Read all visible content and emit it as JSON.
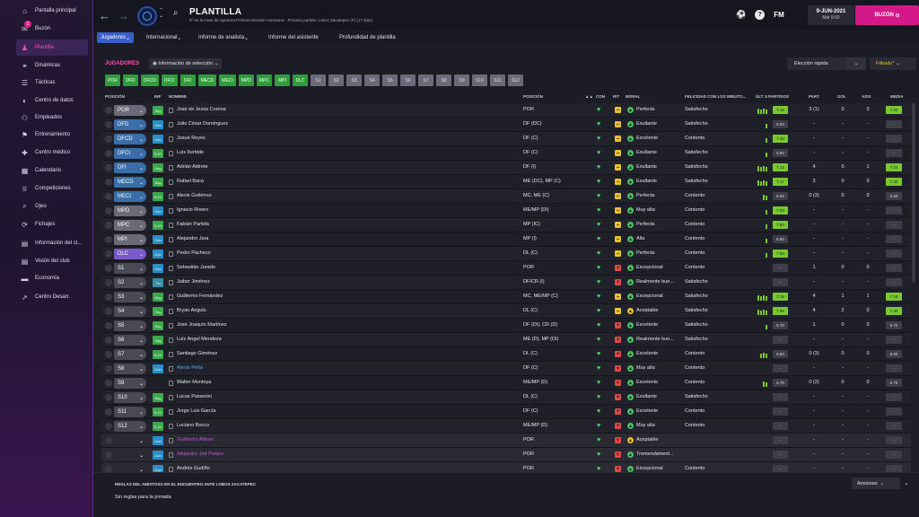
{
  "sidebar": {
    "items": [
      {
        "label": "Pantalla principal",
        "icon": "home-icon",
        "glyph": "⌂"
      },
      {
        "label": "Buzón",
        "icon": "mail-icon",
        "glyph": "✉",
        "badge": "1"
      },
      {
        "label": "Plantilla",
        "icon": "shirt-icon",
        "glyph": "♟",
        "active": true
      },
      {
        "label": "Dinámicas",
        "icon": "dynamics-icon",
        "glyph": "⚭"
      },
      {
        "label": "Tácticas",
        "icon": "tactics-icon",
        "glyph": "☰"
      },
      {
        "label": "Centro de datos",
        "icon": "data-icon",
        "glyph": "◐"
      },
      {
        "label": "Empleados",
        "icon": "staff-icon",
        "glyph": "⚇"
      },
      {
        "label": "Entrenamiento",
        "icon": "training-icon",
        "glyph": "⚑"
      },
      {
        "label": "Centro médico",
        "icon": "medical-icon",
        "glyph": "✚"
      },
      {
        "label": "Calendario",
        "icon": "calendar-icon",
        "glyph": "▦"
      },
      {
        "label": "Competiciones",
        "icon": "trophy-icon",
        "glyph": "♕"
      },
      {
        "label": "Ojeo",
        "icon": "scout-icon",
        "glyph": "⌕"
      },
      {
        "label": "Fichajes",
        "icon": "transfer-icon",
        "glyph": "⟳"
      },
      {
        "label": "Información del cl...",
        "icon": "info-icon",
        "glyph": "▤"
      },
      {
        "label": "Visión del club",
        "icon": "vision-icon",
        "glyph": "▤"
      },
      {
        "label": "Economía",
        "icon": "finance-icon",
        "glyph": "▬"
      },
      {
        "label": "Centro Desarr.",
        "icon": "development-icon",
        "glyph": "➚"
      }
    ]
  },
  "header": {
    "title": "PLANTILLA",
    "subtitle": "5º en la Fase de Apertura Primera División mexicana - Próximo partido: Lobos Zacatepec (F) (17 días)",
    "fm": "FM",
    "date": "9-JUN-2021",
    "date_sub": "Mié 9:00",
    "buzon": "BUZÓN"
  },
  "tabs": [
    {
      "label": "Jugadores",
      "active": true,
      "dd": true
    },
    {
      "label": "Internacional",
      "dd": true
    },
    {
      "label": "Informe de analista",
      "dd": true
    },
    {
      "label": "Informe del asistente"
    },
    {
      "label": "Profundidad de plantilla"
    }
  ],
  "toolbar": {
    "section": "JUGADORES",
    "info_sel": "Información de selección",
    "eleccion": "Elección rápida",
    "filtrado": "Filtrado*"
  },
  "chips": [
    {
      "t": "POR",
      "g": true
    },
    {
      "t": "DFD",
      "g": true
    },
    {
      "t": "DFCD",
      "g": true
    },
    {
      "t": "DFCI",
      "g": true
    },
    {
      "t": "DFI",
      "g": true
    },
    {
      "t": "MECD",
      "g": true
    },
    {
      "t": "MECI",
      "g": true
    },
    {
      "t": "MPD",
      "g": true
    },
    {
      "t": "MPC",
      "g": true
    },
    {
      "t": "MPI",
      "g": true
    },
    {
      "t": "DLC",
      "g": true
    },
    {
      "t": "S1"
    },
    {
      "t": "S2"
    },
    {
      "t": "S3"
    },
    {
      "t": "S4"
    },
    {
      "t": "S5"
    },
    {
      "t": "S6"
    },
    {
      "t": "S7"
    },
    {
      "t": "S8"
    },
    {
      "t": "S9"
    },
    {
      "t": "S10"
    },
    {
      "t": "S11"
    },
    {
      "t": "S12"
    }
  ],
  "columns": {
    "posicion": "POSICIÓN",
    "inf": "INF",
    "nombre": "NOMBRE",
    "pos2": "POSICIÓN",
    "con": "CON",
    "rit": "RIT",
    "moral": "MORAL",
    "felicidad": "FELICIDAD CON LOS MINUTO...",
    "ult": "ÚLT. 5 PARTIDOS",
    "part": "PART",
    "gol": "GOL",
    "asis": "ASIS",
    "media": "MEDIA"
  },
  "rows": [
    {
      "pos": "POR",
      "pc": "#6a6a78",
      "inf": "Sug",
      "ic": "g",
      "name": "José de Jesús Corona",
      "position": "POR",
      "rit": "y",
      "moral": "Perfecta",
      "mc": "g",
      "fel": "Satisfecho",
      "bars": 4,
      "val": "7.16",
      "vc": "#7ac830",
      "part": "3 (1)",
      "gol": "0",
      "asis": "0",
      "media": "7.22",
      "mdc": "#7ac830"
    },
    {
      "pos": "DFD",
      "pc": "#3a6ea8",
      "inf": "Con",
      "ic": "c",
      "name": "Julio César Domínguez",
      "position": "DF (DC)",
      "rit": "y",
      "moral": "Exultante",
      "mc": "g",
      "fel": "Satisfecho",
      "bars": 1,
      "val": "6.50",
      "vc": "#3e3e4a",
      "part": "-",
      "gol": "-",
      "asis": "-",
      "media": "-",
      "mdc": "#3e3e4a"
    },
    {
      "pos": "DFCD",
      "pc": "#3a6ea8",
      "inf": "Con",
      "ic": "c",
      "name": "Josué Reyes",
      "position": "DF (C)",
      "rit": "y",
      "moral": "Excelente",
      "mc": "g",
      "fel": "Contento",
      "bars": 1,
      "val": "7.10",
      "vc": "#7ac830",
      "part": "-",
      "gol": "-",
      "asis": "-",
      "media": "-",
      "mdc": "#3e3e4a"
    },
    {
      "pos": "DFCI",
      "pc": "#3a6ea8",
      "inf": "S-21",
      "ic": "g",
      "name": "Luis Iturbide",
      "position": "DF (C)",
      "rit": "y",
      "moral": "Exultante",
      "mc": "g",
      "fel": "Satisfecho",
      "bars": 1,
      "val": "6.90",
      "vc": "#3e3e4a",
      "part": "-",
      "gol": "-",
      "asis": "-",
      "media": "-",
      "mdc": "#3e3e4a"
    },
    {
      "pos": "DFI",
      "pc": "#3a6ea8",
      "inf": "Sug",
      "ic": "g",
      "name": "Adrián Aldrete",
      "position": "DF (I)",
      "rit": "y",
      "moral": "Exultante",
      "mc": "g",
      "fel": "Satisfecho",
      "bars": 4,
      "val": "7.12",
      "vc": "#7ac830",
      "part": "4",
      "gol": "0",
      "asis": "1",
      "media": "7.20",
      "mdc": "#7ac830"
    },
    {
      "pos": "MECD",
      "pc": "#3a6ea8",
      "inf": "Sug",
      "ic": "g",
      "name": "Rafael Baca",
      "position": "ME (DC), MP (C)",
      "rit": "y",
      "moral": "Exultante",
      "mc": "g",
      "fel": "Satisfecho",
      "bars": 4,
      "val": "7.17",
      "vc": "#7ac830",
      "part": "3",
      "gol": "0",
      "asis": "0",
      "media": "7.30",
      "mdc": "#7ac830"
    },
    {
      "pos": "MECI",
      "pc": "#3a6ea8",
      "inf": "S-21",
      "ic": "g",
      "name": "Alexis Gutiérrez",
      "position": "MC, ME (C)",
      "rit": "y",
      "moral": "Perfecta",
      "mc": "g",
      "fel": "Contento",
      "bars": 2,
      "val": "6.95",
      "vc": "#3e3e4a",
      "part": "0 (3)",
      "gol": "0",
      "asis": "0",
      "media": "6.50",
      "mdc": "#3e3e4a"
    },
    {
      "pos": "MPD",
      "pc": "#6a6a78",
      "inf": "Con",
      "ic": "c",
      "name": "Ignacio Rivero",
      "position": "ME/MP (DI)",
      "rit": "y",
      "moral": "Muy alta",
      "mc": "g",
      "fel": "Contento",
      "bars": 1,
      "val": "7.00",
      "vc": "#7ac830",
      "part": "-",
      "gol": "-",
      "asis": "-",
      "media": "-",
      "mdc": "#3e3e4a"
    },
    {
      "pos": "MPC",
      "pc": "#6a6a78",
      "inf": "S-21",
      "ic": "g",
      "name": "Fabián Partida",
      "position": "MP (IC)",
      "rit": "y",
      "moral": "Perfecta",
      "mc": "g",
      "fel": "Contento",
      "bars": 1,
      "val": "7.00",
      "vc": "#7ac830",
      "part": "-",
      "gol": "-",
      "asis": "-",
      "media": "-",
      "mdc": "#3e3e4a"
    },
    {
      "pos": "MPI",
      "pc": "#6a6a78",
      "inf": "Con",
      "ic": "c",
      "name": "Alejandro Jara",
      "position": "MP (I)",
      "rit": "y",
      "moral": "Alta",
      "mc": "g",
      "fel": "Contento",
      "bars": 1,
      "val": "6.60",
      "vc": "#3e3e4a",
      "part": "-",
      "gol": "-",
      "asis": "-",
      "media": "-",
      "mdc": "#3e3e4a"
    },
    {
      "pos": "DLC",
      "pc": "#7a5ac8",
      "inf": "Con",
      "ic": "c",
      "name": "Pedro Pacheco",
      "position": "DL (C)",
      "rit": "y",
      "moral": "Perfecta",
      "mc": "g",
      "fel": "Contento",
      "bars": 1,
      "val": "7.00",
      "vc": "#7ac830",
      "part": "-",
      "gol": "-",
      "asis": "-",
      "media": "-",
      "mdc": "#3e3e4a"
    },
    {
      "pos": "S1",
      "pc": "#4a4a56",
      "inf": "Con",
      "ic": "c",
      "name": "Sebastián Jurado",
      "position": "POR",
      "rit": "r",
      "moral": "Excepcional",
      "mc": "g",
      "fel": "Contento",
      "bars": 0,
      "val": "-",
      "vc": "#3e3e4a",
      "part": "1",
      "gol": "0",
      "asis": "0",
      "media": "-",
      "mdc": "#3e3e4a"
    },
    {
      "pos": "S2",
      "pc": "#4a4a56",
      "inf": "Tm",
      "ic": "t",
      "name": "Jaiber Jiménez",
      "position": "DF/CR (I)",
      "rit": "r",
      "moral": "Realmente bue...",
      "mc": "g",
      "fel": "Satisfecho",
      "bars": 0,
      "val": "-",
      "vc": "#3e3e4a",
      "part": "-",
      "gol": "-",
      "asis": "-",
      "media": "-",
      "mdc": "#3e3e4a"
    },
    {
      "pos": "S3",
      "pc": "#4a4a56",
      "inf": "Sug",
      "ic": "g",
      "name": "Guillermo Fernández",
      "position": "MC, ME/MP (C)",
      "rit": "y",
      "moral": "Excepcional",
      "mc": "g",
      "fel": "Satisfecho",
      "bars": 4,
      "val": "7.15",
      "vc": "#7ac830",
      "part": "4",
      "gol": "1",
      "asis": "1",
      "media": "7.18",
      "mdc": "#7ac830"
    },
    {
      "pos": "S4",
      "pc": "#4a4a56",
      "inf": "Sug",
      "ic": "g",
      "name": "Bryan Angulo",
      "position": "DL (C)",
      "rit": "y",
      "moral": "Aceptable",
      "mc": "y",
      "fel": "Satisfecho",
      "bars": 4,
      "val": "7.50",
      "vc": "#7ac830",
      "part": "4",
      "gol": "2",
      "asis": "0",
      "media": "7.30",
      "mdc": "#7ac830"
    },
    {
      "pos": "S5",
      "pc": "#4a4a56",
      "inf": "Sug",
      "ic": "g",
      "name": "José Joaquín Martínez",
      "position": "DF (DI), CR (D)",
      "rit": "r",
      "moral": "Excelente",
      "mc": "g",
      "fel": "Satisfecho",
      "bars": 1,
      "val": "6.70",
      "vc": "#3e3e4a",
      "part": "1",
      "gol": "0",
      "asis": "0",
      "media": "6.70",
      "mdc": "#3e3e4a"
    },
    {
      "pos": "S6",
      "pc": "#4a4a56",
      "inf": "Sug",
      "ic": "g",
      "name": "Luis Ángel Mendoza",
      "position": "ME (D), MP (DI)",
      "rit": "r",
      "moral": "Realmente bue...",
      "mc": "g",
      "fel": "Satisfecho",
      "bars": 0,
      "val": "-",
      "vc": "#3e3e4a",
      "part": "-",
      "gol": "-",
      "asis": "-",
      "media": "-",
      "mdc": "#3e3e4a"
    },
    {
      "pos": "S7",
      "pc": "#4a4a56",
      "inf": "S-21",
      "ic": "g",
      "name": "Santiago Giménez",
      "position": "DL (C)",
      "rit": "r",
      "moral": "Excelente",
      "mc": "g",
      "fel": "Contento",
      "bars": 3,
      "val": "6.80",
      "vc": "#3e3e4a",
      "part": "0 (3)",
      "gol": "0",
      "asis": "0",
      "media": "6.80",
      "mdc": "#3e3e4a"
    },
    {
      "pos": "S8",
      "pc": "#4a4a56",
      "inf": "Con",
      "ic": "c",
      "name": "Alexis Peña",
      "nameColor": "#5aa8e8",
      "position": "DF (C)",
      "rit": "r",
      "moral": "Muy alta",
      "mc": "g",
      "fel": "Contento",
      "bars": 0,
      "val": "-",
      "vc": "#3e3e4a",
      "part": "-",
      "gol": "-",
      "asis": "-",
      "media": "-",
      "mdc": "#3e3e4a"
    },
    {
      "pos": "S9",
      "pc": "#4a4a56",
      "inf": "",
      "ic": "",
      "name": "Walter Montoya",
      "position": "ME/MP (D)",
      "rit": "r",
      "moral": "Excelente",
      "mc": "g",
      "fel": "Contento",
      "bars": 2,
      "val": "6.75",
      "vc": "#3e3e4a",
      "part": "0 (2)",
      "gol": "0",
      "asis": "0",
      "media": "6.75",
      "mdc": "#3e3e4a"
    },
    {
      "pos": "S10",
      "pc": "#4a4a56",
      "inf": "Sug",
      "ic": "g",
      "name": "Lucas Passerini",
      "position": "DL (C)",
      "rit": "r",
      "moral": "Exultante",
      "mc": "g",
      "fel": "Satisfecho",
      "bars": 0,
      "val": "-",
      "vc": "#3e3e4a",
      "part": "-",
      "gol": "-",
      "asis": "-",
      "media": "-",
      "mdc": "#3e3e4a"
    },
    {
      "pos": "S11",
      "pc": "#4a4a56",
      "inf": "S-21",
      "ic": "g",
      "name": "Jorge Luis García",
      "position": "DF (C)",
      "rit": "r",
      "moral": "Excelente",
      "mc": "g",
      "fel": "Contento",
      "bars": 0,
      "val": "-",
      "vc": "#3e3e4a",
      "part": "-",
      "gol": "-",
      "asis": "-",
      "media": "-",
      "mdc": "#3e3e4a"
    },
    {
      "pos": "S12",
      "pc": "#4a4a56",
      "inf": "S-21",
      "ic": "g",
      "name": "Luciano Bocco",
      "position": "ME/MP (D)",
      "rit": "r",
      "moral": "Muy alta",
      "mc": "g",
      "fel": "Contento",
      "bars": 0,
      "val": "-",
      "vc": "#3e3e4a",
      "part": "-",
      "gol": "-",
      "asis": "-",
      "media": "-",
      "mdc": "#3e3e4a"
    },
    {
      "pos": "",
      "pc": "transparent",
      "inf": "Con",
      "ic": "c",
      "name": "Guillermo Allison",
      "nameColor": "#c05ad0",
      "position": "POR",
      "rit": "r",
      "moral": "Aceptable",
      "mc": "y",
      "fel": "",
      "bars": 0,
      "val": "-",
      "vc": "#3e3e4a",
      "part": "-",
      "gol": "-",
      "asis": "-",
      "media": "-",
      "mdc": "#3e3e4a",
      "dim": true
    },
    {
      "pos": "",
      "pc": "transparent",
      "inf": "Con",
      "ic": "c",
      "name": "Alejandro Jair Peláez",
      "nameColor": "#c05ad0",
      "position": "POR",
      "rit": "r",
      "moral": "Tremendament...",
      "mc": "g",
      "fel": "",
      "bars": 0,
      "val": "-",
      "vc": "#3e3e4a",
      "part": "-",
      "gol": "-",
      "asis": "-",
      "media": "-",
      "mdc": "#3e3e4a",
      "dim": true
    },
    {
      "pos": "",
      "pc": "transparent",
      "inf": "Con",
      "ic": "c",
      "name": "Andrés Gudiño",
      "position": "POR",
      "rit": "r",
      "moral": "Excepcional",
      "mc": "g",
      "fel": "Contento",
      "bars": 0,
      "val": "-",
      "vc": "#3e3e4a",
      "part": "-",
      "gol": "-",
      "asis": "-",
      "media": "-",
      "mdc": "#3e3e4a",
      "dim": true
    }
  ],
  "footer": {
    "title": "REGLAS DEL AMISTOSO EN EL ENCUENTRO ANTE LOBOS ZACATEPEC",
    "text": "Sin reglas para la jornada",
    "amistoso": "Amistoso"
  }
}
